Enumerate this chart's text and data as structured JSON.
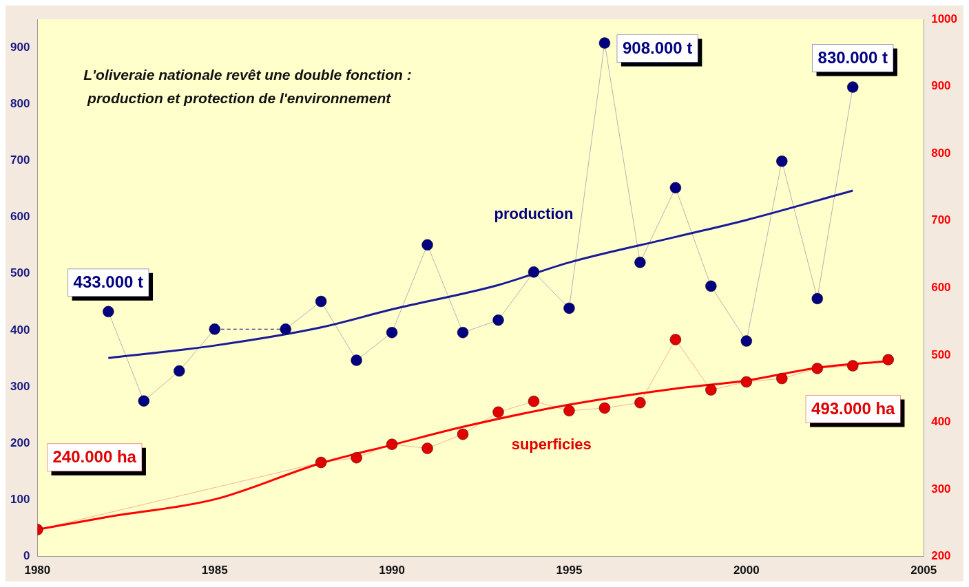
{
  "chart_data": {
    "type": "line",
    "title": "L'oliveraie nationale revêt une double fonction :\n production et protection de l'environnement",
    "xlim": [
      1980,
      2005
    ],
    "xticks": [
      1980,
      1985,
      1990,
      1995,
      2000,
      2005
    ],
    "ylim": [
      0,
      950
    ],
    "yticks": [
      0,
      100,
      200,
      300,
      400,
      500,
      600,
      700,
      800,
      900
    ],
    "y2lim": [
      200,
      1000
    ],
    "y2ticks": [
      200,
      300,
      400,
      500,
      600,
      700,
      800,
      900,
      1000
    ],
    "grid": false,
    "legend": false,
    "marker": "circle",
    "series": [
      {
        "name": "production",
        "color": "#000080",
        "x": [
          1982,
          1983,
          1984,
          1985,
          1986,
          1987,
          1988,
          1989,
          1990,
          1991,
          1992,
          1993,
          1994,
          1995,
          1996,
          1997,
          1998,
          1999,
          2000,
          2001,
          2002,
          2003
        ],
        "values": [
          433,
          275,
          328,
          402,
          null,
          402,
          451,
          347,
          396,
          551,
          396,
          418,
          503,
          439,
          908,
          520,
          652,
          478,
          381,
          699,
          456,
          830
        ]
      },
      {
        "type": "line",
        "marker": "none",
        "color": "#1a1a99",
        "x": [
          1982,
          1985,
          1988,
          1990,
          1993,
          1995,
          1998,
          2000,
          2003
        ],
        "values": [
          351,
          373,
          405,
          437,
          480,
          520,
          565,
          595,
          647
        ]
      },
      {
        "name": "superficies",
        "axis": "y2",
        "color": "#e00000",
        "x": [
          1980,
          1988,
          1989,
          1990,
          1991,
          1992,
          1993,
          1994,
          1995,
          1996,
          1997,
          1998,
          1999,
          2000,
          2001,
          2002,
          2003,
          2004
        ],
        "values": [
          240,
          340,
          347,
          367,
          361,
          382,
          415,
          431,
          417,
          421,
          429,
          523,
          448,
          460,
          465,
          480,
          484,
          493
        ]
      },
      {
        "type": "line",
        "marker": "none",
        "axis": "y2",
        "color": "#ff0000",
        "x": [
          1980,
          1982,
          1985,
          1988,
          1990,
          1992,
          1995,
          1998,
          2000,
          2002,
          2004
        ],
        "values": [
          240,
          259,
          285,
          339,
          366,
          393,
          426,
          450,
          462,
          481,
          491
        ]
      }
    ],
    "annotations": [
      {
        "text": "433.000 t",
        "x": 1982,
        "y": 433
      },
      {
        "text": "908.000 t",
        "x": 1996,
        "y": 908
      },
      {
        "text": "830.000 t",
        "x": 2003,
        "y": 830
      },
      "240.000 ha",
      "493.000 ha"
    ]
  }
}
